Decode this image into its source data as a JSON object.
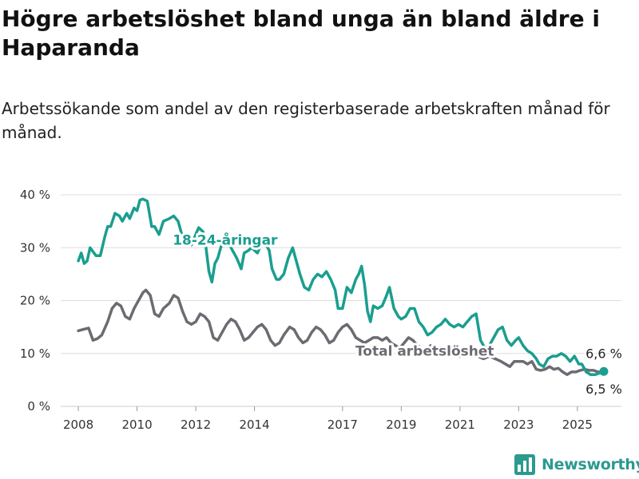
{
  "title": "Högre arbetslöshet bland unga än bland äldre i Haparanda",
  "subtitle": "Arbetssökande som andel av den registerbaserade arbetskraften månad för månad.",
  "brand": "Newsworthy",
  "colors": {
    "youth": "#1a9e8f",
    "total": "#6d6a72",
    "grid": "#dddddd"
  },
  "chart_data": {
    "type": "line",
    "x_unit": "year",
    "xlim": [
      2007.4,
      2026.5
    ],
    "ylim": [
      0,
      40
    ],
    "yticks": [
      0,
      10,
      20,
      30,
      40
    ],
    "ytick_labels": [
      "0 %",
      "10 %",
      "20 %",
      "30 %",
      "40 %"
    ],
    "xticks": [
      2008,
      2010,
      2012,
      2014,
      2017,
      2019,
      2021,
      2023,
      2025
    ],
    "xtick_labels": [
      "2008",
      "2010",
      "2012",
      "2014",
      "2017",
      "2019",
      "2021",
      "2023",
      "2025"
    ],
    "grid": true,
    "series": [
      {
        "name": "18-24-åringar",
        "color": "#1a9e8f",
        "end_label": "6,6 %",
        "points": [
          [
            2008.0,
            27.5
          ],
          [
            2008.1,
            29.0
          ],
          [
            2008.2,
            27.0
          ],
          [
            2008.3,
            27.5
          ],
          [
            2008.4,
            30.0
          ],
          [
            2008.6,
            28.5
          ],
          [
            2008.75,
            28.5
          ],
          [
            2008.9,
            32.0
          ],
          [
            2009.0,
            34.0
          ],
          [
            2009.1,
            34.0
          ],
          [
            2009.25,
            36.5
          ],
          [
            2009.4,
            36.0
          ],
          [
            2009.5,
            35.0
          ],
          [
            2009.65,
            36.5
          ],
          [
            2009.75,
            35.5
          ],
          [
            2009.9,
            37.5
          ],
          [
            2010.0,
            37.0
          ],
          [
            2010.1,
            39.0
          ],
          [
            2010.2,
            39.2
          ],
          [
            2010.35,
            38.8
          ],
          [
            2010.5,
            34.0
          ],
          [
            2010.6,
            34.0
          ],
          [
            2010.75,
            32.5
          ],
          [
            2010.9,
            35.0
          ],
          [
            2011.1,
            35.5
          ],
          [
            2011.25,
            36.0
          ],
          [
            2011.4,
            35.0
          ],
          [
            2011.55,
            32.0
          ],
          [
            2011.7,
            31.5
          ],
          [
            2011.85,
            30.5
          ],
          [
            2012.0,
            32.5
          ],
          [
            2012.1,
            33.8
          ],
          [
            2012.25,
            33.0
          ],
          [
            2012.35,
            30.0
          ],
          [
            2012.45,
            25.5
          ],
          [
            2012.55,
            23.5
          ],
          [
            2012.65,
            27.0
          ],
          [
            2012.75,
            28.0
          ],
          [
            2012.85,
            30.0
          ],
          [
            2013.0,
            32.0
          ],
          [
            2013.2,
            30.0
          ],
          [
            2013.4,
            28.0
          ],
          [
            2013.55,
            26.0
          ],
          [
            2013.65,
            29.0
          ],
          [
            2013.8,
            29.5
          ],
          [
            2013.9,
            30.0
          ],
          [
            2014.1,
            29.0
          ],
          [
            2014.3,
            31.5
          ],
          [
            2014.5,
            29.5
          ],
          [
            2014.6,
            26.0
          ],
          [
            2014.75,
            24.0
          ],
          [
            2014.85,
            24.0
          ],
          [
            2015.0,
            25.0
          ],
          [
            2015.15,
            28.0
          ],
          [
            2015.3,
            30.0
          ],
          [
            2015.4,
            28.0
          ],
          [
            2015.55,
            25.0
          ],
          [
            2015.7,
            22.5
          ],
          [
            2015.85,
            22.0
          ],
          [
            2016.0,
            24.0
          ],
          [
            2016.15,
            25.0
          ],
          [
            2016.3,
            24.5
          ],
          [
            2016.45,
            25.5
          ],
          [
            2016.6,
            24.0
          ],
          [
            2016.75,
            22.0
          ],
          [
            2016.85,
            18.5
          ],
          [
            2017.0,
            18.5
          ],
          [
            2017.15,
            22.5
          ],
          [
            2017.3,
            21.5
          ],
          [
            2017.45,
            24.0
          ],
          [
            2017.55,
            25.0
          ],
          [
            2017.65,
            26.5
          ],
          [
            2017.75,
            23.0
          ],
          [
            2017.85,
            18.0
          ],
          [
            2017.95,
            16.0
          ],
          [
            2018.05,
            19.0
          ],
          [
            2018.2,
            18.5
          ],
          [
            2018.35,
            19.0
          ],
          [
            2018.5,
            21.0
          ],
          [
            2018.6,
            22.5
          ],
          [
            2018.75,
            18.5
          ],
          [
            2018.9,
            17.0
          ],
          [
            2019.0,
            16.5
          ],
          [
            2019.15,
            17.0
          ],
          [
            2019.3,
            18.5
          ],
          [
            2019.45,
            18.5
          ],
          [
            2019.6,
            16.0
          ],
          [
            2019.75,
            15.0
          ],
          [
            2019.9,
            13.5
          ],
          [
            2020.05,
            14.0
          ],
          [
            2020.2,
            15.0
          ],
          [
            2020.35,
            15.5
          ],
          [
            2020.5,
            16.5
          ],
          [
            2020.65,
            15.5
          ],
          [
            2020.8,
            15.0
          ],
          [
            2020.95,
            15.5
          ],
          [
            2021.1,
            15.0
          ],
          [
            2021.25,
            16.0
          ],
          [
            2021.4,
            17.0
          ],
          [
            2021.55,
            17.5
          ],
          [
            2021.7,
            12.5
          ],
          [
            2021.85,
            11.0
          ],
          [
            2022.0,
            11.5
          ],
          [
            2022.15,
            13.0
          ],
          [
            2022.3,
            14.5
          ],
          [
            2022.45,
            15.0
          ],
          [
            2022.6,
            12.5
          ],
          [
            2022.75,
            11.5
          ],
          [
            2022.9,
            12.5
          ],
          [
            2023.0,
            13.0
          ],
          [
            2023.15,
            11.5
          ],
          [
            2023.3,
            10.5
          ],
          [
            2023.45,
            10.0
          ],
          [
            2023.6,
            9.0
          ],
          [
            2023.7,
            8.0
          ],
          [
            2023.85,
            7.5
          ],
          [
            2024.0,
            9.0
          ],
          [
            2024.15,
            9.5
          ],
          [
            2024.3,
            9.5
          ],
          [
            2024.45,
            10.0
          ],
          [
            2024.6,
            9.5
          ],
          [
            2024.75,
            8.5
          ],
          [
            2024.9,
            9.5
          ],
          [
            2025.05,
            8.0
          ],
          [
            2025.15,
            8.0
          ],
          [
            2025.3,
            6.5
          ],
          [
            2025.45,
            6.0
          ],
          [
            2025.6,
            6.0
          ],
          [
            2025.75,
            6.3
          ],
          [
            2025.9,
            6.6
          ]
        ]
      },
      {
        "name": "Total arbetslöshet",
        "color": "#6d6a72",
        "end_label": "6,5 %",
        "points": [
          [
            2008.0,
            14.3
          ],
          [
            2008.2,
            14.6
          ],
          [
            2008.35,
            14.8
          ],
          [
            2008.5,
            12.5
          ],
          [
            2008.65,
            12.8
          ],
          [
            2008.8,
            13.5
          ],
          [
            2009.0,
            16.0
          ],
          [
            2009.15,
            18.5
          ],
          [
            2009.3,
            19.5
          ],
          [
            2009.45,
            19.0
          ],
          [
            2009.6,
            17.0
          ],
          [
            2009.75,
            16.5
          ],
          [
            2009.9,
            18.5
          ],
          [
            2010.05,
            20.0
          ],
          [
            2010.2,
            21.5
          ],
          [
            2010.3,
            22.0
          ],
          [
            2010.45,
            21.0
          ],
          [
            2010.6,
            17.5
          ],
          [
            2010.75,
            17.0
          ],
          [
            2010.9,
            18.5
          ],
          [
            2011.1,
            19.5
          ],
          [
            2011.25,
            21.0
          ],
          [
            2011.4,
            20.5
          ],
          [
            2011.55,
            18.0
          ],
          [
            2011.7,
            16.0
          ],
          [
            2011.85,
            15.5
          ],
          [
            2012.0,
            16.0
          ],
          [
            2012.15,
            17.5
          ],
          [
            2012.3,
            17.0
          ],
          [
            2012.45,
            16.0
          ],
          [
            2012.6,
            13.0
          ],
          [
            2012.75,
            12.5
          ],
          [
            2012.9,
            14.0
          ],
          [
            2013.05,
            15.5
          ],
          [
            2013.2,
            16.5
          ],
          [
            2013.35,
            16.0
          ],
          [
            2013.5,
            14.5
          ],
          [
            2013.65,
            12.5
          ],
          [
            2013.8,
            13.0
          ],
          [
            2013.95,
            14.0
          ],
          [
            2014.1,
            15.0
          ],
          [
            2014.25,
            15.5
          ],
          [
            2014.4,
            14.5
          ],
          [
            2014.55,
            12.5
          ],
          [
            2014.7,
            11.5
          ],
          [
            2014.85,
            12.0
          ],
          [
            2015.0,
            13.5
          ],
          [
            2015.2,
            15.0
          ],
          [
            2015.35,
            14.5
          ],
          [
            2015.5,
            13.0
          ],
          [
            2015.65,
            12.0
          ],
          [
            2015.8,
            12.5
          ],
          [
            2015.95,
            14.0
          ],
          [
            2016.1,
            15.0
          ],
          [
            2016.25,
            14.5
          ],
          [
            2016.4,
            13.5
          ],
          [
            2016.55,
            12.0
          ],
          [
            2016.7,
            12.5
          ],
          [
            2016.85,
            14.0
          ],
          [
            2017.0,
            15.0
          ],
          [
            2017.15,
            15.5
          ],
          [
            2017.3,
            14.5
          ],
          [
            2017.45,
            13.0
          ],
          [
            2017.6,
            12.5
          ],
          [
            2017.75,
            12.0
          ],
          [
            2017.9,
            12.5
          ],
          [
            2018.05,
            13.0
          ],
          [
            2018.2,
            13.0
          ],
          [
            2018.35,
            12.5
          ],
          [
            2018.5,
            13.0
          ],
          [
            2018.65,
            12.0
          ],
          [
            2018.8,
            11.5
          ],
          [
            2018.95,
            11.0
          ],
          [
            2019.1,
            12.0
          ],
          [
            2019.25,
            13.0
          ],
          [
            2019.4,
            12.5
          ],
          [
            2019.55,
            11.5
          ],
          [
            2019.7,
            11.0
          ],
          [
            2019.85,
            10.5
          ],
          [
            2020.0,
            11.5
          ],
          [
            2020.2,
            11.0
          ],
          [
            2020.4,
            10.5
          ],
          [
            2020.6,
            10.0
          ],
          [
            2020.8,
            9.5
          ],
          [
            2021.0,
            9.5
          ],
          [
            2021.2,
            10.0
          ],
          [
            2021.4,
            10.5
          ],
          [
            2021.6,
            9.5
          ],
          [
            2021.8,
            9.0
          ],
          [
            2022.0,
            9.5
          ],
          [
            2022.2,
            9.0
          ],
          [
            2022.4,
            8.5
          ],
          [
            2022.55,
            8.0
          ],
          [
            2022.7,
            7.5
          ],
          [
            2022.85,
            8.5
          ],
          [
            2023.0,
            8.5
          ],
          [
            2023.15,
            8.5
          ],
          [
            2023.3,
            8.0
          ],
          [
            2023.45,
            8.5
          ],
          [
            2023.6,
            7.0
          ],
          [
            2023.75,
            6.8
          ],
          [
            2023.9,
            7.0
          ],
          [
            2024.05,
            7.5
          ],
          [
            2024.2,
            7.0
          ],
          [
            2024.35,
            7.2
          ],
          [
            2024.5,
            6.5
          ],
          [
            2024.65,
            6.0
          ],
          [
            2024.8,
            6.5
          ],
          [
            2024.95,
            6.5
          ],
          [
            2025.1,
            6.8
          ],
          [
            2025.25,
            7.0
          ],
          [
            2025.4,
            6.8
          ],
          [
            2025.55,
            6.8
          ],
          [
            2025.7,
            6.5
          ],
          [
            2025.9,
            6.5
          ]
        ]
      }
    ],
    "annotations": [
      {
        "text": "18-24-åringar",
        "series": 0,
        "x": 2013.0,
        "y": 31.5
      },
      {
        "text": "Total arbetslöshet",
        "series": 1,
        "x": 2019.8,
        "y": 10.5
      }
    ]
  }
}
